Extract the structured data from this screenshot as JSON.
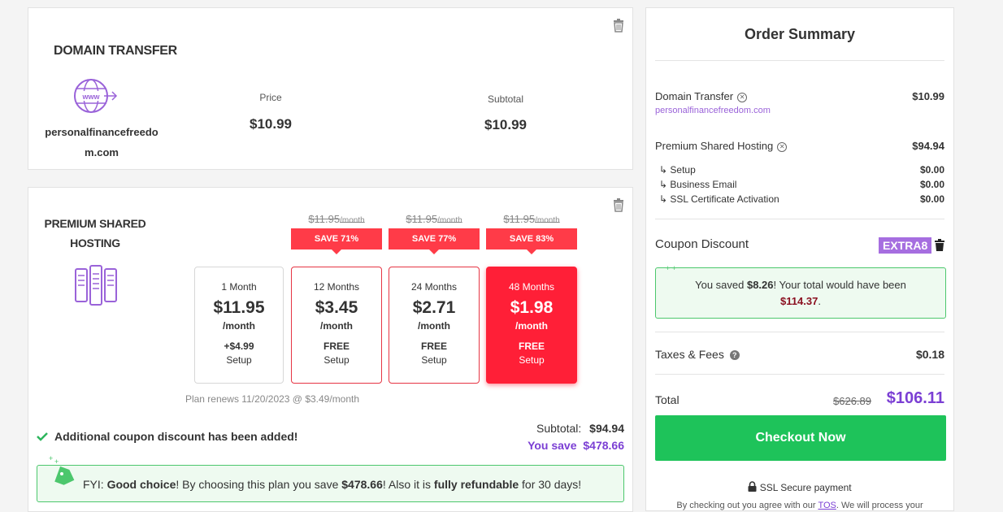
{
  "domain_card": {
    "title": "DOMAIN TRANSFER",
    "domain_line1": "personalfinancefreedo",
    "domain_line2": "m.com",
    "price_label": "Price",
    "price_value": "$10.99",
    "subtotal_label": "Subtotal",
    "subtotal_value": "$10.99"
  },
  "hosting_card": {
    "title_line1": "PREMIUM SHARED",
    "title_line2": "HOSTING",
    "plans": [
      {
        "duration": "1 Month",
        "price": "$11.95",
        "per": "/month",
        "setup_price": "+$4.99",
        "setup_label": "Setup"
      },
      {
        "duration": "12 Months",
        "price": "$3.45",
        "per": "/month",
        "setup_price": "FREE",
        "setup_label": "Setup",
        "old_price": "$11.95",
        "old_per": "/month",
        "save_badge": "SAVE 71%"
      },
      {
        "duration": "24 Months",
        "price": "$2.71",
        "per": "/month",
        "setup_price": "FREE",
        "setup_label": "Setup",
        "old_price": "$11.95",
        "old_per": "/month",
        "save_badge": "SAVE 77%"
      },
      {
        "duration": "48 Months",
        "price": "$1.98",
        "per": "/month",
        "setup_price": "FREE",
        "setup_label": "Setup",
        "old_price": "$11.95",
        "old_per": "/month",
        "save_badge": "SAVE 83%"
      }
    ],
    "renew_note": "Plan renews 11/20/2023 @ $3.49/month",
    "coupon_added": "Additional coupon discount has been added!",
    "subtotal_label": "Subtotal:",
    "subtotal_value": "$94.94",
    "you_save_label": "You save",
    "you_save_value": "$478.66",
    "fyi": {
      "prefix": "FYI: ",
      "bold1": "Good choice",
      "mid1": "! By choosing this plan you save ",
      "bold2": "$478.66",
      "mid2": "! Also it is ",
      "bold3": "fully refundable",
      "suffix": " for 30 days!"
    }
  },
  "summary": {
    "title": "Order Summary",
    "domain_transfer_label": "Domain Transfer",
    "domain_transfer_value": "$10.99",
    "domain_name": "personalfinancefreedom.com",
    "hosting_label": "Premium Shared Hosting",
    "hosting_value": "$94.94",
    "sub_items": [
      {
        "label": "Setup",
        "value": "$0.00"
      },
      {
        "label": "Business Email",
        "value": "$0.00"
      },
      {
        "label": "SSL Certificate Activation",
        "value": "$0.00"
      }
    ],
    "coupon_label": "Coupon Discount",
    "coupon_code": "EXTRA8",
    "saved_prefix": "You saved ",
    "saved_amount": "$8.26",
    "saved_mid": "! Your total would have been",
    "would_have_been": "$114.37",
    "saved_end": ".",
    "taxes_label": "Taxes & Fees",
    "taxes_value": "$0.18",
    "total_label": "Total",
    "total_old": "$626.89",
    "total_new": "$106.11",
    "checkout_label": "Checkout Now",
    "ssl_label": "SSL Secure payment",
    "tos_prefix": "By checking out you agree with our ",
    "tos_link": "TOS",
    "tos_suffix": ". We will process your"
  },
  "colors": {
    "accent_purple": "#7b3fd4",
    "save_red": "#ff1f37",
    "success_green": "#1ec35a"
  }
}
